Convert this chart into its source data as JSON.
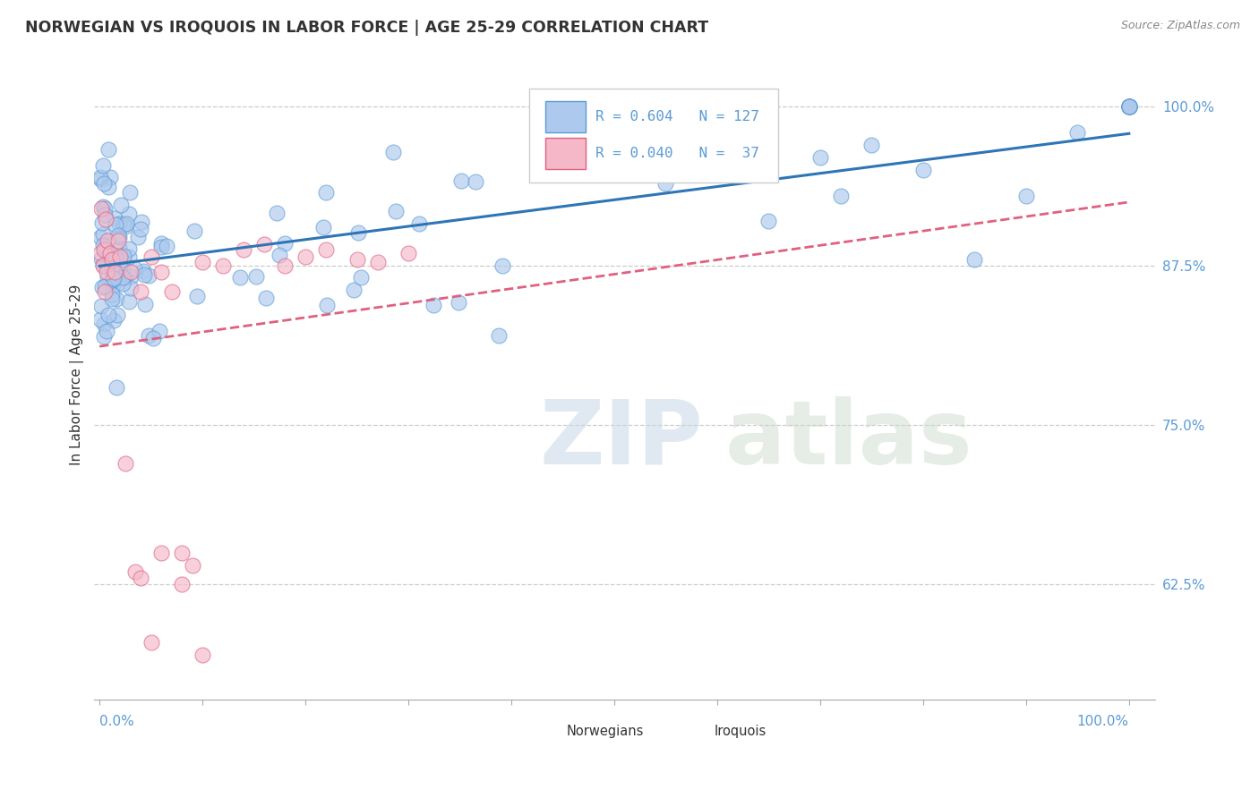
{
  "title": "NORWEGIAN VS IROQUOIS IN LABOR FORCE | AGE 25-29 CORRELATION CHART",
  "source": "Source: ZipAtlas.com",
  "ylabel": "In Labor Force | Age 25-29",
  "norwegian_R": 0.604,
  "norwegian_N": 127,
  "iroquois_R": 0.04,
  "iroquois_N": 37,
  "norwegian_color": "#adc9ed",
  "norwegian_edge_color": "#5b9bd5",
  "iroquois_color": "#f4b8c8",
  "iroquois_edge_color": "#e06080",
  "norwegian_line_color": "#2e75b6",
  "iroquois_line_color": "#e06080",
  "ytick_vals": [
    0.625,
    0.75,
    0.875,
    1.0
  ],
  "ytick_labels": [
    "62.5%",
    "75.0%",
    "87.5%",
    "100.0%"
  ],
  "ymin": 0.535,
  "ymax": 1.045,
  "watermark_zip_color": "#c8d8e8",
  "watermark_atlas_color": "#c8d8c8",
  "legend_nor_text": "R = 0.604   N = 127",
  "legend_iro_text": "R = 0.040   N =  37"
}
